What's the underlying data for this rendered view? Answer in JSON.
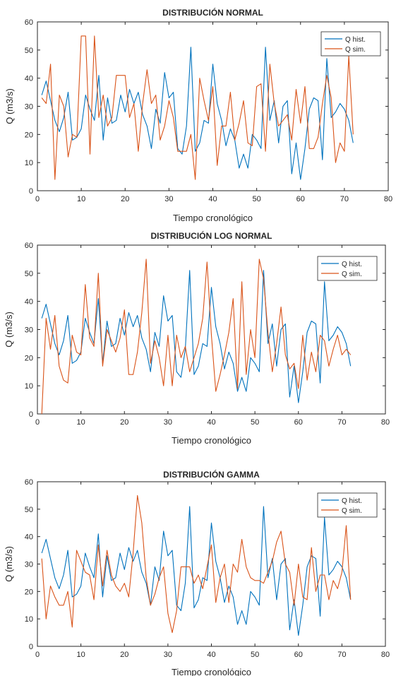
{
  "colors": {
    "hist": "#0072BD",
    "sim": "#D95319",
    "axis": "#262626"
  },
  "chart_data": [
    {
      "type": "line",
      "title": "DISTRIBUCIÓN NORMAL",
      "xlabel": "Tiempo cronológico",
      "ylabel": "Q (m3/s)",
      "xlim": [
        0,
        80
      ],
      "ylim": [
        0,
        60
      ],
      "xticks": [
        0,
        10,
        20,
        30,
        40,
        50,
        60,
        70,
        80
      ],
      "yticks": [
        0,
        10,
        20,
        30,
        40,
        50,
        60
      ],
      "grid": false,
      "legend_position": "top-right",
      "x": [
        1,
        2,
        3,
        4,
        5,
        6,
        7,
        8,
        9,
        10,
        11,
        12,
        13,
        14,
        15,
        16,
        17,
        18,
        19,
        20,
        21,
        22,
        23,
        24,
        25,
        26,
        27,
        28,
        29,
        30,
        31,
        32,
        33,
        34,
        35,
        36,
        37,
        38,
        39,
        40,
        41,
        42,
        43,
        44,
        45,
        46,
        47,
        48,
        49,
        50,
        51,
        52,
        53,
        54,
        55,
        56,
        57,
        58,
        59,
        60,
        61,
        62,
        63,
        64,
        65,
        66,
        67,
        68,
        69,
        70,
        71,
        72
      ],
      "series": [
        {
          "name": "Q hist.",
          "values": [
            34,
            39,
            32,
            25,
            21,
            26,
            35,
            18,
            19,
            22,
            34,
            29,
            25,
            41,
            18,
            33,
            24,
            25,
            34,
            28,
            36,
            31,
            35,
            27,
            23,
            15,
            29,
            24,
            42,
            33,
            35,
            15,
            13,
            23,
            51,
            14,
            17,
            25,
            24,
            45,
            31,
            25,
            16,
            22,
            18,
            8,
            13,
            8,
            20,
            18,
            15,
            51,
            25,
            32,
            17,
            30,
            32,
            6,
            17,
            4,
            15,
            29,
            33,
            32,
            11,
            47,
            26,
            28,
            31,
            29,
            25,
            17
          ]
        },
        {
          "name": "Q sim.",
          "values": [
            33,
            31,
            45,
            4,
            34,
            30,
            12,
            20,
            19,
            55,
            55,
            13,
            55,
            26,
            34,
            23,
            26,
            41,
            41,
            41,
            26,
            31,
            14,
            31,
            43,
            31,
            34,
            18,
            23,
            32,
            26,
            14,
            14,
            14,
            20,
            4,
            40,
            32,
            25,
            37,
            9,
            23,
            23,
            35,
            18,
            24,
            32,
            17,
            16,
            37,
            38,
            14,
            45,
            31,
            23,
            25,
            27,
            18,
            36,
            24,
            37,
            15,
            15,
            19,
            31,
            41,
            33,
            10,
            17,
            14,
            48,
            20
          ]
        }
      ]
    },
    {
      "type": "line",
      "title": "DISTRIBUCIÓN LOG NORMAL",
      "xlabel": "Tiempo cronológico",
      "ylabel": "Q (m3/s)",
      "xlim": [
        0,
        80
      ],
      "ylim": [
        0,
        60
      ],
      "xticks": [
        0,
        10,
        20,
        30,
        40,
        50,
        60,
        70,
        80
      ],
      "yticks": [
        0,
        10,
        20,
        30,
        40,
        50,
        60
      ],
      "grid": false,
      "legend_position": "top-right",
      "x": [
        1,
        2,
        3,
        4,
        5,
        6,
        7,
        8,
        9,
        10,
        11,
        12,
        13,
        14,
        15,
        16,
        17,
        18,
        19,
        20,
        21,
        22,
        23,
        24,
        25,
        26,
        27,
        28,
        29,
        30,
        31,
        32,
        33,
        34,
        35,
        36,
        37,
        38,
        39,
        40,
        41,
        42,
        43,
        44,
        45,
        46,
        47,
        48,
        49,
        50,
        51,
        52,
        53,
        54,
        55,
        56,
        57,
        58,
        59,
        60,
        61,
        62,
        63,
        64,
        65,
        66,
        67,
        68,
        69,
        70,
        71,
        72
      ],
      "series": [
        {
          "name": "Q hist.",
          "values": [
            34,
            39,
            32,
            25,
            21,
            26,
            35,
            18,
            19,
            22,
            34,
            29,
            25,
            41,
            18,
            33,
            24,
            25,
            34,
            28,
            36,
            31,
            35,
            27,
            23,
            15,
            29,
            24,
            42,
            33,
            35,
            15,
            13,
            23,
            51,
            14,
            17,
            25,
            24,
            45,
            31,
            25,
            16,
            22,
            18,
            8,
            13,
            8,
            20,
            18,
            15,
            51,
            25,
            32,
            17,
            30,
            32,
            6,
            17,
            4,
            15,
            29,
            33,
            32,
            11,
            47,
            26,
            28,
            31,
            29,
            25,
            17
          ]
        },
        {
          "name": "Q sim.",
          "values": [
            0,
            34,
            23,
            35,
            17,
            12,
            11,
            28,
            22,
            21,
            46,
            27,
            24,
            50,
            17,
            30,
            26,
            22,
            27,
            37,
            14,
            14,
            22,
            36,
            55,
            18,
            26,
            20,
            10,
            28,
            10,
            28,
            20,
            24,
            15,
            20,
            25,
            34,
            54,
            28,
            8,
            14,
            21,
            29,
            41,
            9,
            47,
            14,
            30,
            20,
            55,
            48,
            29,
            15,
            25,
            38,
            21,
            16,
            18,
            9,
            28,
            12,
            22,
            15,
            28,
            26,
            17,
            23,
            28,
            21,
            23,
            21
          ]
        }
      ]
    },
    {
      "type": "line",
      "title": "DISTRIBUCIÓN GAMMA",
      "xlabel": "Tiempo cronológico",
      "ylabel": "Q (m3/s)",
      "xlim": [
        0,
        80
      ],
      "ylim": [
        0,
        60
      ],
      "xticks": [
        0,
        10,
        20,
        30,
        40,
        50,
        60,
        70,
        80
      ],
      "yticks": [
        0,
        10,
        20,
        30,
        40,
        50,
        60
      ],
      "grid": false,
      "legend_position": "top-right",
      "x": [
        1,
        2,
        3,
        4,
        5,
        6,
        7,
        8,
        9,
        10,
        11,
        12,
        13,
        14,
        15,
        16,
        17,
        18,
        19,
        20,
        21,
        22,
        23,
        24,
        25,
        26,
        27,
        28,
        29,
        30,
        31,
        32,
        33,
        34,
        35,
        36,
        37,
        38,
        39,
        40,
        41,
        42,
        43,
        44,
        45,
        46,
        47,
        48,
        49,
        50,
        51,
        52,
        53,
        54,
        55,
        56,
        57,
        58,
        59,
        60,
        61,
        62,
        63,
        64,
        65,
        66,
        67,
        68,
        69,
        70,
        71,
        72
      ],
      "series": [
        {
          "name": "Q hist.",
          "values": [
            34,
            39,
            32,
            25,
            21,
            26,
            35,
            18,
            19,
            22,
            34,
            29,
            25,
            41,
            18,
            33,
            24,
            25,
            34,
            28,
            36,
            31,
            35,
            27,
            23,
            15,
            29,
            24,
            42,
            33,
            35,
            15,
            13,
            23,
            51,
            14,
            17,
            25,
            24,
            45,
            31,
            25,
            16,
            22,
            18,
            8,
            13,
            8,
            20,
            18,
            15,
            51,
            25,
            32,
            17,
            30,
            32,
            6,
            17,
            4,
            15,
            29,
            33,
            32,
            11,
            47,
            26,
            28,
            31,
            29,
            25,
            17
          ]
        },
        {
          "name": "Q sim.",
          "values": [
            32,
            10,
            22,
            18,
            15,
            15,
            20,
            7,
            35,
            31,
            27,
            26,
            17,
            37,
            22,
            35,
            26,
            22,
            20,
            23,
            18,
            34,
            55,
            45,
            25,
            15,
            19,
            25,
            29,
            12,
            5,
            13,
            29,
            29,
            29,
            23,
            26,
            21,
            29,
            37,
            16,
            25,
            30,
            16,
            30,
            27,
            39,
            29,
            25,
            24,
            24,
            23,
            27,
            31,
            38,
            42,
            30,
            27,
            15,
            30,
            18,
            17,
            36,
            20,
            26,
            26,
            17,
            24,
            21,
            27,
            44,
            17
          ]
        }
      ]
    }
  ]
}
